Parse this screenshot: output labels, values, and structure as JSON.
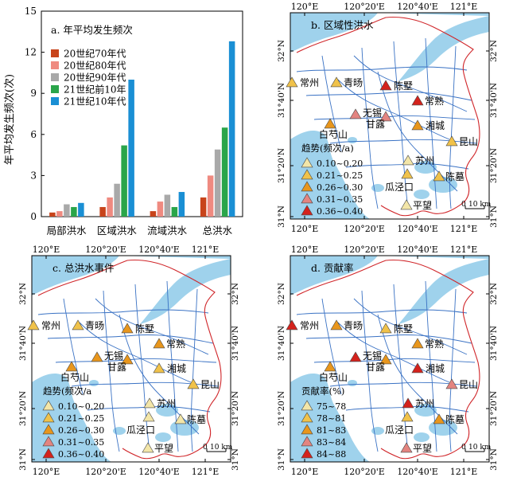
{
  "chart_data": [
    {
      "type": "bar",
      "panel_label": "a. 年平均发生频次",
      "ylabel": "年平均发生频次(次)",
      "ylim": [
        0,
        15
      ],
      "yticks": [
        0,
        3,
        6,
        9,
        12,
        15
      ],
      "categories": [
        "局部洪水",
        "区域洪水",
        "流域洪水",
        "总洪水"
      ],
      "series": [
        {
          "name": "20世纪70年代",
          "color": "#c8441b",
          "values": [
            0.3,
            0.7,
            0.4,
            1.4
          ]
        },
        {
          "name": "20世纪80年代",
          "color": "#ef8a80",
          "values": [
            0.4,
            1.4,
            1.1,
            3.0
          ]
        },
        {
          "name": "20世纪90年代",
          "color": "#a9a9a9",
          "values": [
            0.9,
            2.4,
            1.6,
            4.9
          ]
        },
        {
          "name": "21世纪前10年",
          "color": "#2aa54a",
          "values": [
            0.7,
            5.2,
            0.7,
            6.5
          ]
        },
        {
          "name": "21世纪10年代",
          "color": "#1a8fd4",
          "values": [
            1.0,
            10.0,
            1.8,
            12.8
          ]
        }
      ]
    },
    {
      "type": "map",
      "panel_label": "b. 区域性洪水",
      "legend_title": "趋势(频次/a)",
      "legend": [
        "0.10~0.20",
        "0.21~0.25",
        "0.26~0.30",
        "0.31~0.35",
        "0.36~0.40"
      ],
      "stations": [
        {
          "name": "常州",
          "class": 2
        },
        {
          "name": "青旸",
          "class": 2
        },
        {
          "name": "陈墅",
          "class": 5
        },
        {
          "name": "常熟",
          "class": 5
        },
        {
          "name": "无锡",
          "class": 4
        },
        {
          "name": "甘露",
          "class": 4
        },
        {
          "name": "湘城",
          "class": 3
        },
        {
          "name": "白芍山",
          "class": 3
        },
        {
          "name": "昆山",
          "class": 2
        },
        {
          "name": "苏州",
          "class": 1
        },
        {
          "name": "陈墓",
          "class": 2
        },
        {
          "name": "瓜泾口",
          "class": 2
        },
        {
          "name": "平望",
          "class": 1
        }
      ]
    },
    {
      "type": "map",
      "panel_label": "c. 总洪水事件",
      "legend_title": "趋势(频次/a",
      "legend": [
        "0.10~0.20",
        "0.21~0.25",
        "0.26~0.30",
        "0.31~0.35",
        "0.36~0.40"
      ],
      "stations": [
        {
          "name": "常州",
          "class": 2
        },
        {
          "name": "青旸",
          "class": 2
        },
        {
          "name": "陈墅",
          "class": 3
        },
        {
          "name": "常熟",
          "class": 3
        },
        {
          "name": "无锡",
          "class": 3
        },
        {
          "name": "甘露",
          "class": 3
        },
        {
          "name": "湘城",
          "class": 2
        },
        {
          "name": "白芍山",
          "class": 3
        },
        {
          "name": "昆山",
          "class": 2
        },
        {
          "name": "苏州",
          "class": 1
        },
        {
          "name": "陈墓",
          "class": 1
        },
        {
          "name": "瓜泾口",
          "class": 1
        },
        {
          "name": "平望",
          "class": 1
        }
      ]
    },
    {
      "type": "map",
      "panel_label": "d. 贡献率",
      "legend_title": "贡献率(%)",
      "legend": [
        "75~78",
        "78~81",
        "81~83",
        "83~84",
        "84~88"
      ],
      "stations": [
        {
          "name": "常州",
          "class": 5
        },
        {
          "name": "青旸",
          "class": 3
        },
        {
          "name": "陈墅",
          "class": 2
        },
        {
          "name": "常熟",
          "class": 3
        },
        {
          "name": "无锡",
          "class": 5
        },
        {
          "name": "甘露",
          "class": 3
        },
        {
          "name": "湘城",
          "class": 5
        },
        {
          "name": "白芍山",
          "class": 3
        },
        {
          "name": "昆山",
          "class": 4
        },
        {
          "name": "苏州",
          "class": 5
        },
        {
          "name": "陈墓",
          "class": 3
        },
        {
          "name": "瓜泾口",
          "class": 2
        },
        {
          "name": "平望",
          "class": 4
        }
      ]
    }
  ],
  "map_axes": {
    "lon_labels": [
      "120°E",
      "120°20'E",
      "120°40'E",
      "121°E"
    ],
    "lat_labels": [
      "32°N",
      "31°40'N",
      "31°20'N",
      "31°N"
    ],
    "scale": "10 km",
    "scale_zero": "0"
  },
  "class_colors": [
    "#f3e6a8",
    "#f0c24a",
    "#e8961c",
    "#e38480",
    "#d4221c"
  ]
}
